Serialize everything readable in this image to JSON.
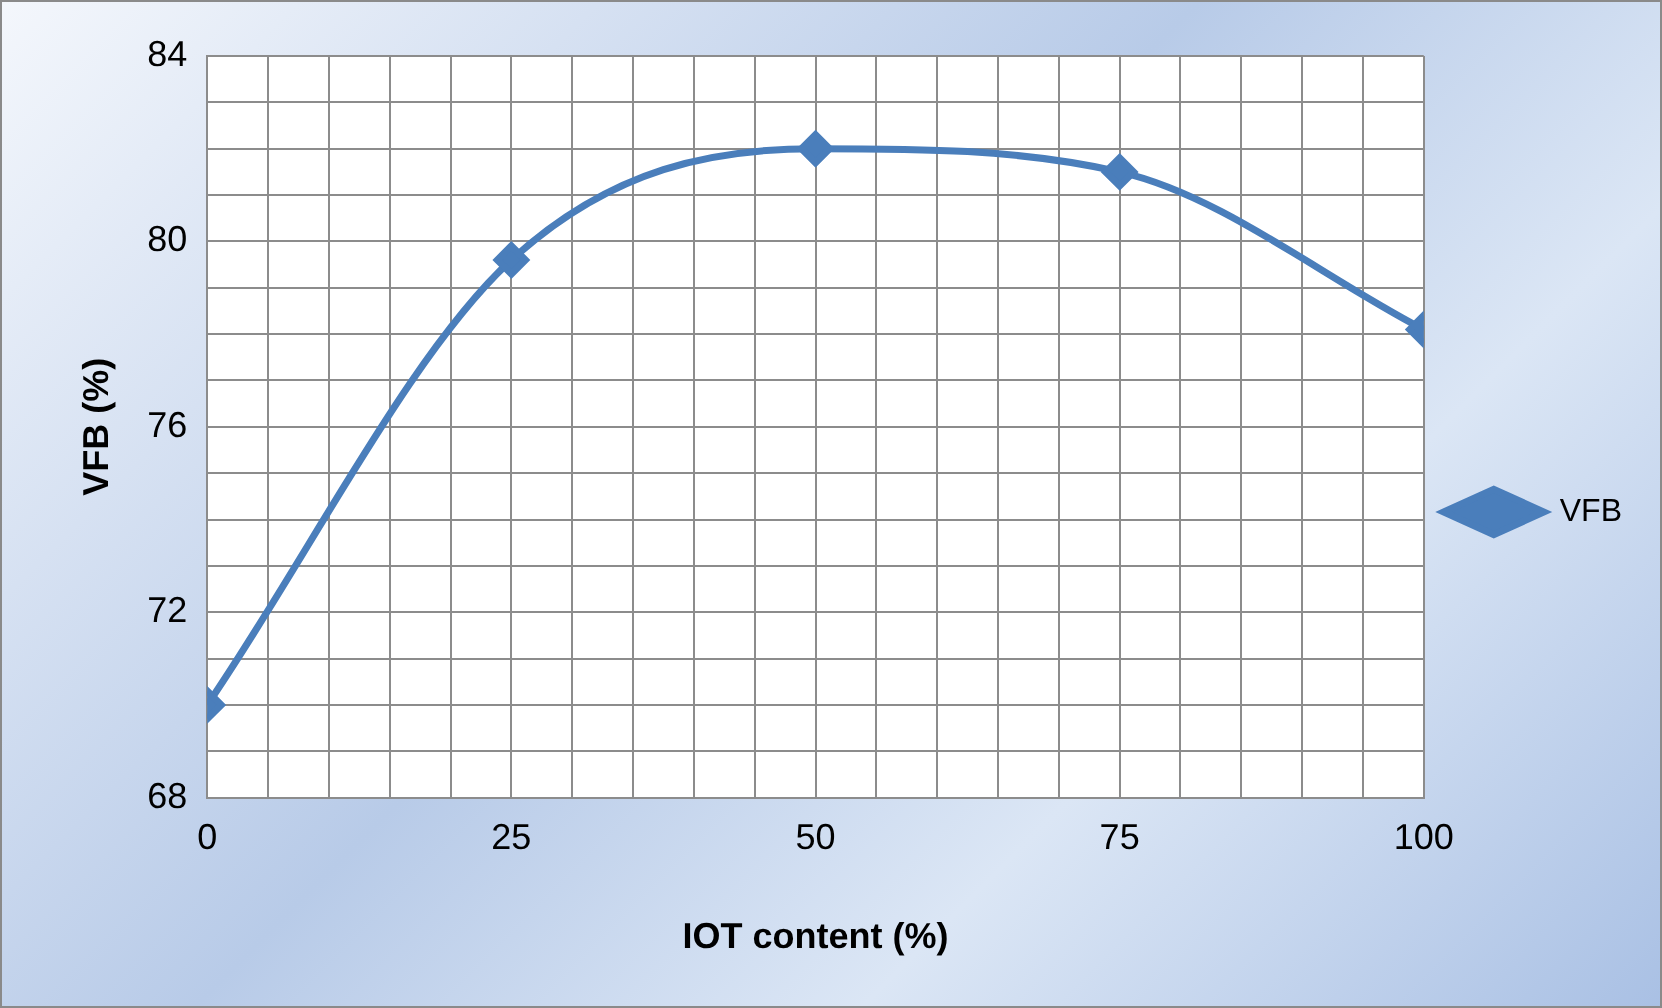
{
  "chart_data": {
    "type": "line",
    "xlabel": "IOT content (%)",
    "ylabel": "VFB (%)",
    "x": [
      0,
      25,
      50,
      75,
      100
    ],
    "series": [
      {
        "name": "VFB",
        "color": "#4a7ebb",
        "values": [
          70.0,
          79.6,
          82.0,
          81.5,
          78.1
        ]
      }
    ],
    "xlim": [
      0,
      100
    ],
    "xticks": [
      0,
      {
        "value": 5,
        "label": null
      },
      {
        "value": 10,
        "label": null
      },
      {
        "value": 15,
        "label": null
      },
      {
        "value": 20,
        "label": null
      },
      25,
      {
        "value": 30,
        "label": null
      },
      {
        "value": 35,
        "label": null
      },
      {
        "value": 40,
        "label": null
      },
      {
        "value": 45,
        "label": null
      },
      50,
      {
        "value": 55,
        "label": null
      },
      {
        "value": 60,
        "label": null
      },
      {
        "value": 65,
        "label": null
      },
      {
        "value": 70,
        "label": null
      },
      75,
      {
        "value": 80,
        "label": null
      },
      {
        "value": 85,
        "label": null
      },
      {
        "value": 90,
        "label": null
      },
      {
        "value": 95,
        "label": null
      },
      100
    ],
    "ylim": [
      68,
      84
    ],
    "yticks": [
      68,
      {
        "value": 69,
        "label": null
      },
      {
        "value": 70,
        "label": null
      },
      {
        "value": 71,
        "label": null
      },
      72,
      {
        "value": 73,
        "label": null
      },
      {
        "value": 74,
        "label": null
      },
      {
        "value": 75,
        "label": null
      },
      76,
      {
        "value": 77,
        "label": null
      },
      {
        "value": 78,
        "label": null
      },
      {
        "value": 79,
        "label": null
      },
      80,
      {
        "value": 81,
        "label": null
      },
      {
        "value": 82,
        "label": null
      },
      {
        "value": 83,
        "label": null
      },
      84
    ],
    "grid": true,
    "legend": "right",
    "marker": "diamond",
    "line_style": "solid"
  }
}
